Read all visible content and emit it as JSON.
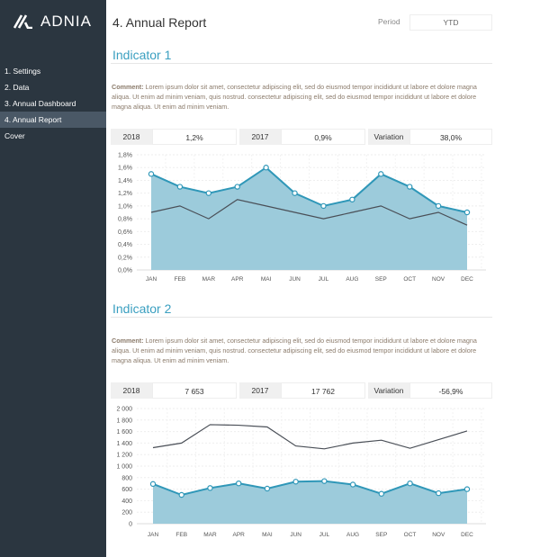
{
  "brand": "ADNIA",
  "sidebar": {
    "items": [
      {
        "label": "1. Settings"
      },
      {
        "label": "2. Data"
      },
      {
        "label": "3. Annual Dashboard"
      },
      {
        "label": "4. Annual Report",
        "active": true
      },
      {
        "label": "Cover"
      }
    ]
  },
  "header": {
    "title": "4. Annual Report",
    "period_label": "Period",
    "period_value": "YTD"
  },
  "indicators": [
    {
      "title": "Indicator 1",
      "comment_label": "Comment:",
      "comment": " Lorem ipsum dolor sit amet, consectetur adipiscing elit, sed do eiusmod tempor incididunt ut labore et dolore magna aliqua. Ut enim ad minim veniam, quis nostrud.  consectetur adipiscing elit, sed do eiusmod tempor incididunt ut labore et dolore magna aliqua. Ut enim ad minim veniam.",
      "kpis": [
        {
          "label": "2018",
          "value": "1,2%"
        },
        {
          "label": "2017",
          "value": "0,9%"
        },
        {
          "label": "Variation",
          "value": "38,0%"
        }
      ]
    },
    {
      "title": "Indicator 2",
      "comment_label": "Comment:",
      "comment": " Lorem ipsum dolor sit amet, consectetur adipiscing elit, sed do eiusmod tempor incididunt ut labore et dolore magna aliqua. Ut enim ad minim veniam, quis nostrud.  consectetur adipiscing elit, sed do eiusmod tempor incididunt ut labore et dolore magna aliqua. Ut enim ad minim veniam.",
      "kpis": [
        {
          "label": "2018",
          "value": "7 653"
        },
        {
          "label": "2017",
          "value": "17 762"
        },
        {
          "label": "Variation",
          "value": "-56,9%"
        }
      ]
    }
  ],
  "colors": {
    "sidebar": "#2b3640",
    "accent": "#3a9fc0",
    "area": "#9ccbdb",
    "line": "#4a4f57"
  },
  "chart_data": [
    {
      "type": "area",
      "categories": [
        "JAN",
        "FEB",
        "MAR",
        "APR",
        "MAI",
        "JUN",
        "JUL",
        "AUG",
        "SEP",
        "OCT",
        "NOV",
        "DEC"
      ],
      "yticks": [
        "0,0%",
        "0,2%",
        "0,4%",
        "0,6%",
        "0,8%",
        "1,0%",
        "1,2%",
        "1,4%",
        "1,6%",
        "1,8%"
      ],
      "ylim": [
        0,
        1.8
      ],
      "grid": true,
      "series": [
        {
          "values": [
            1.5,
            1.3,
            1.2,
            1.3,
            1.6,
            1.2,
            1.0,
            1.1,
            1.5,
            1.3,
            1.0,
            0.9
          ],
          "style": "area"
        },
        {
          "values": [
            0.9,
            1.0,
            0.8,
            1.1,
            1.0,
            0.9,
            0.8,
            0.9,
            1.0,
            0.8,
            0.9,
            0.7
          ],
          "style": "line"
        }
      ]
    },
    {
      "type": "area",
      "categories": [
        "JAN",
        "FEB",
        "MAR",
        "APR",
        "MAI",
        "JUN",
        "JUL",
        "AUG",
        "SEP",
        "OCT",
        "NOV",
        "DEC"
      ],
      "yticks": [
        "0",
        "200",
        "400",
        "600",
        "800",
        "1 000",
        "1 200",
        "1 400",
        "1 600",
        "1 800",
        "2 000"
      ],
      "ylim": [
        0,
        2000
      ],
      "grid": true,
      "series": [
        {
          "values": [
            690,
            500,
            620,
            700,
            610,
            730,
            740,
            680,
            520,
            700,
            530,
            600
          ],
          "style": "area"
        },
        {
          "values": [
            1320,
            1400,
            1720,
            1710,
            1680,
            1350,
            1300,
            1400,
            1450,
            1310,
            1460,
            1610
          ],
          "style": "line"
        }
      ]
    }
  ]
}
